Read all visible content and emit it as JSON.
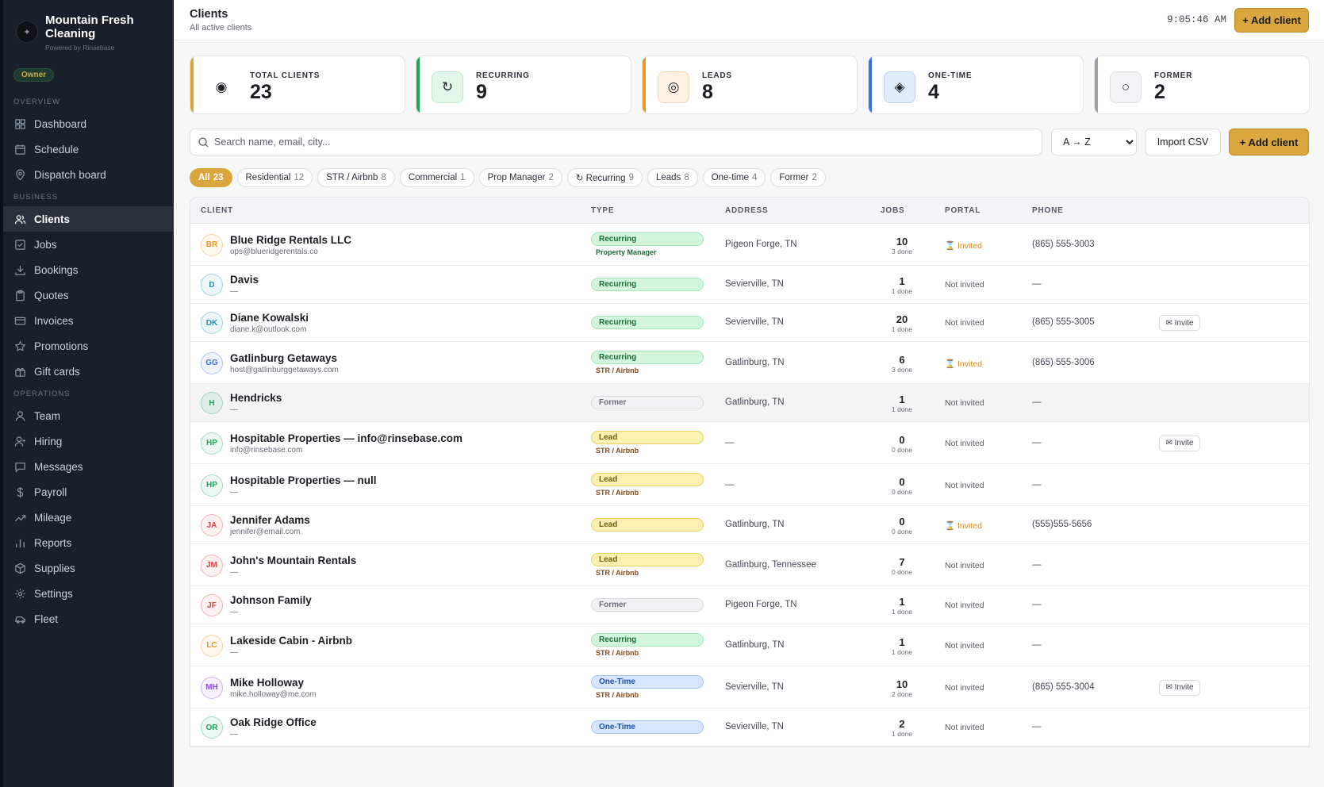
{
  "brand": {
    "name": "Mountain Fresh Cleaning",
    "powered_by": "Powered by Rinsebase",
    "role_badge": "Owner"
  },
  "sidebar": {
    "sections": [
      {
        "label": "OVERVIEW",
        "items": [
          {
            "label": "Dashboard",
            "icon": "grid-icon"
          },
          {
            "label": "Schedule",
            "icon": "calendar-icon"
          },
          {
            "label": "Dispatch board",
            "icon": "map-pin-icon"
          }
        ]
      },
      {
        "label": "BUSINESS",
        "items": [
          {
            "label": "Clients",
            "icon": "users-icon",
            "active": true
          },
          {
            "label": "Jobs",
            "icon": "check-square-icon"
          },
          {
            "label": "Bookings",
            "icon": "download-icon"
          },
          {
            "label": "Quotes",
            "icon": "clipboard-icon"
          },
          {
            "label": "Invoices",
            "icon": "credit-card-icon"
          },
          {
            "label": "Promotions",
            "icon": "star-icon"
          },
          {
            "label": "Gift cards",
            "icon": "gift-icon"
          }
        ]
      },
      {
        "label": "OPERATIONS",
        "items": [
          {
            "label": "Team",
            "icon": "user-icon"
          },
          {
            "label": "Hiring",
            "icon": "user-plus-icon"
          },
          {
            "label": "Messages",
            "icon": "message-icon"
          },
          {
            "label": "Payroll",
            "icon": "dollar-icon"
          },
          {
            "label": "Mileage",
            "icon": "trending-icon"
          },
          {
            "label": "Reports",
            "icon": "bar-chart-icon"
          },
          {
            "label": "Supplies",
            "icon": "box-icon"
          },
          {
            "label": "Settings",
            "icon": "gear-icon"
          },
          {
            "label": "Fleet",
            "icon": "car-icon"
          }
        ]
      }
    ]
  },
  "header": {
    "title": "Clients",
    "subtitle": "All active clients",
    "clock": "9:05:46 AM",
    "add_label": "+ Add client"
  },
  "stats": [
    {
      "label": "TOTAL CLIENTS",
      "value": "23",
      "icon": "target-icon",
      "glyph": "◉",
      "accent": "#d9a73d",
      "icon_bg": "#ffffff",
      "icon_border": "#ffffff"
    },
    {
      "label": "RECURRING",
      "value": "9",
      "icon": "refresh-icon",
      "glyph": "↻",
      "accent": "#22a55b",
      "icon_bg": "#e3f6ea",
      "icon_border": "#bfe7cd"
    },
    {
      "label": "LEADS",
      "value": "8",
      "icon": "bullseye-icon",
      "glyph": "◎",
      "accent": "#e8952a",
      "icon_bg": "#fdf1e3",
      "icon_border": "#f5d6b3"
    },
    {
      "label": "ONE-TIME",
      "value": "4",
      "icon": "diamond-icon",
      "glyph": "◈",
      "accent": "#3674e8",
      "icon_bg": "#e3ecfc",
      "icon_border": "#bcd0f5"
    },
    {
      "label": "FORMER",
      "value": "2",
      "icon": "circle-icon",
      "glyph": "○",
      "accent": "#9aa0aa",
      "icon_bg": "#f2f3f5",
      "icon_border": "#dcdee2"
    }
  ],
  "toolbar": {
    "search_placeholder": "Search name, email, city...",
    "sort_value": "A → Z",
    "import_label": "Import CSV",
    "add_label": "+ Add client"
  },
  "filters": [
    {
      "label": "All",
      "count": "23",
      "active": true
    },
    {
      "label": "Residential",
      "count": "12"
    },
    {
      "label": "STR / Airbnb",
      "count": "8"
    },
    {
      "label": "Commercial",
      "count": "1"
    },
    {
      "label": "Prop Manager",
      "count": "2"
    },
    {
      "label": "↻ Recurring",
      "count": "9"
    },
    {
      "label": "Leads",
      "count": "8"
    },
    {
      "label": "One-time",
      "count": "4"
    },
    {
      "label": "Former",
      "count": "2"
    }
  ],
  "table": {
    "columns": [
      "CLIENT",
      "TYPE",
      "ADDRESS",
      "JOBS",
      "PORTAL",
      "PHONE"
    ],
    "rows": [
      {
        "initials": "BR",
        "color": "#e8952a",
        "name": "Blue Ridge Rentals LLC",
        "email": "ops@blueridgerentals.co",
        "type": "Recurring",
        "sub": "Property Manager",
        "address": "Pigeon Forge, TN",
        "jobs": "10",
        "done": "3 done",
        "portal": "⌛ Invited",
        "invited": true,
        "phone": "(865) 555-3003",
        "invite_btn": false
      },
      {
        "initials": "D",
        "color": "#1f8fb0",
        "name": "Davis",
        "email": "—",
        "type": "Recurring",
        "sub": "",
        "address": "Sevierville, TN",
        "jobs": "1",
        "done": "1 done",
        "portal": "Not invited",
        "invited": false,
        "phone": "—",
        "invite_btn": false
      },
      {
        "initials": "DK",
        "color": "#1f8fb0",
        "name": "Diane Kowalski",
        "email": "diane.k@outlook.com",
        "type": "Recurring",
        "sub": "",
        "address": "Sevierville, TN",
        "jobs": "20",
        "done": "1 done",
        "portal": "Not invited",
        "invited": false,
        "phone": "(865) 555-3005",
        "invite_btn": true
      },
      {
        "initials": "GG",
        "color": "#3674e8",
        "name": "Gatlinburg Getaways",
        "email": "host@gatlinburggetaways.com",
        "type": "Recurring",
        "sub": "STR / Airbnb",
        "address": "Gatlinburg, TN",
        "jobs": "6",
        "done": "3 done",
        "portal": "⌛ Invited",
        "invited": true,
        "phone": "(865) 555-3006",
        "invite_btn": false
      },
      {
        "initials": "H",
        "color": "#22a55b",
        "name": "Hendricks",
        "email": "—",
        "type": "Former",
        "sub": "",
        "address": "Gatlinburg, TN",
        "jobs": "1",
        "done": "1 done",
        "portal": "Not invited",
        "invited": false,
        "phone": "—",
        "invite_btn": false,
        "hover": true
      },
      {
        "initials": "HP",
        "color": "#22a55b",
        "name": "Hospitable Properties — info@rinsebase.com",
        "email": "info@rinsebase.com",
        "type": "Lead",
        "sub": "STR / Airbnb",
        "address": "—",
        "jobs": "0",
        "done": "0 done",
        "portal": "Not invited",
        "invited": false,
        "phone": "—",
        "invite_btn": true
      },
      {
        "initials": "HP",
        "color": "#22a55b",
        "name": "Hospitable Properties — null",
        "email": "—",
        "type": "Lead",
        "sub": "STR / Airbnb",
        "address": "—",
        "jobs": "0",
        "done": "0 done",
        "portal": "Not invited",
        "invited": false,
        "phone": "—",
        "invite_btn": false
      },
      {
        "initials": "JA",
        "color": "#d64545",
        "name": "Jennifer Adams",
        "email": "jennifer@email.com",
        "type": "Lead",
        "sub": "",
        "address": "Gatlinburg, TN",
        "jobs": "0",
        "done": "0 done",
        "portal": "⌛ Invited",
        "invited": true,
        "phone": "(555)555-5656",
        "invite_btn": false
      },
      {
        "initials": "JM",
        "color": "#d64545",
        "name": "John's Mountain Rentals",
        "email": "—",
        "type": "Lead",
        "sub": "STR / Airbnb",
        "address": "Gatlinburg, Tennessee",
        "jobs": "7",
        "done": "0 done",
        "portal": "Not invited",
        "invited": false,
        "phone": "—",
        "invite_btn": false
      },
      {
        "initials": "JF",
        "color": "#d64545",
        "name": "Johnson Family",
        "email": "—",
        "type": "Former",
        "sub": "",
        "address": "Pigeon Forge, TN",
        "jobs": "1",
        "done": "1 done",
        "portal": "Not invited",
        "invited": false,
        "phone": "—",
        "invite_btn": false
      },
      {
        "initials": "LC",
        "color": "#e8952a",
        "name": "Lakeside Cabin - Airbnb",
        "email": "—",
        "type": "Recurring",
        "sub": "STR / Airbnb",
        "address": "Gatlinburg, TN",
        "jobs": "1",
        "done": "1 done",
        "portal": "Not invited",
        "invited": false,
        "phone": "—",
        "invite_btn": false
      },
      {
        "initials": "MH",
        "color": "#8a4fd8",
        "name": "Mike Holloway",
        "email": "mike.holloway@me.com",
        "type": "One-Time",
        "sub": "STR / Airbnb",
        "address": "Sevierville, TN",
        "jobs": "10",
        "done": "2 done",
        "portal": "Not invited",
        "invited": false,
        "phone": "(865) 555-3004",
        "invite_btn": true
      },
      {
        "initials": "OR",
        "color": "#22a55b",
        "name": "Oak Ridge Office",
        "email": "—",
        "type": "One-Time",
        "sub": "",
        "address": "Sevierville, TN",
        "jobs": "2",
        "done": "1 done",
        "portal": "Not invited",
        "invited": false,
        "phone": "—",
        "invite_btn": false
      }
    ],
    "invite_label": "✉ Invite"
  }
}
